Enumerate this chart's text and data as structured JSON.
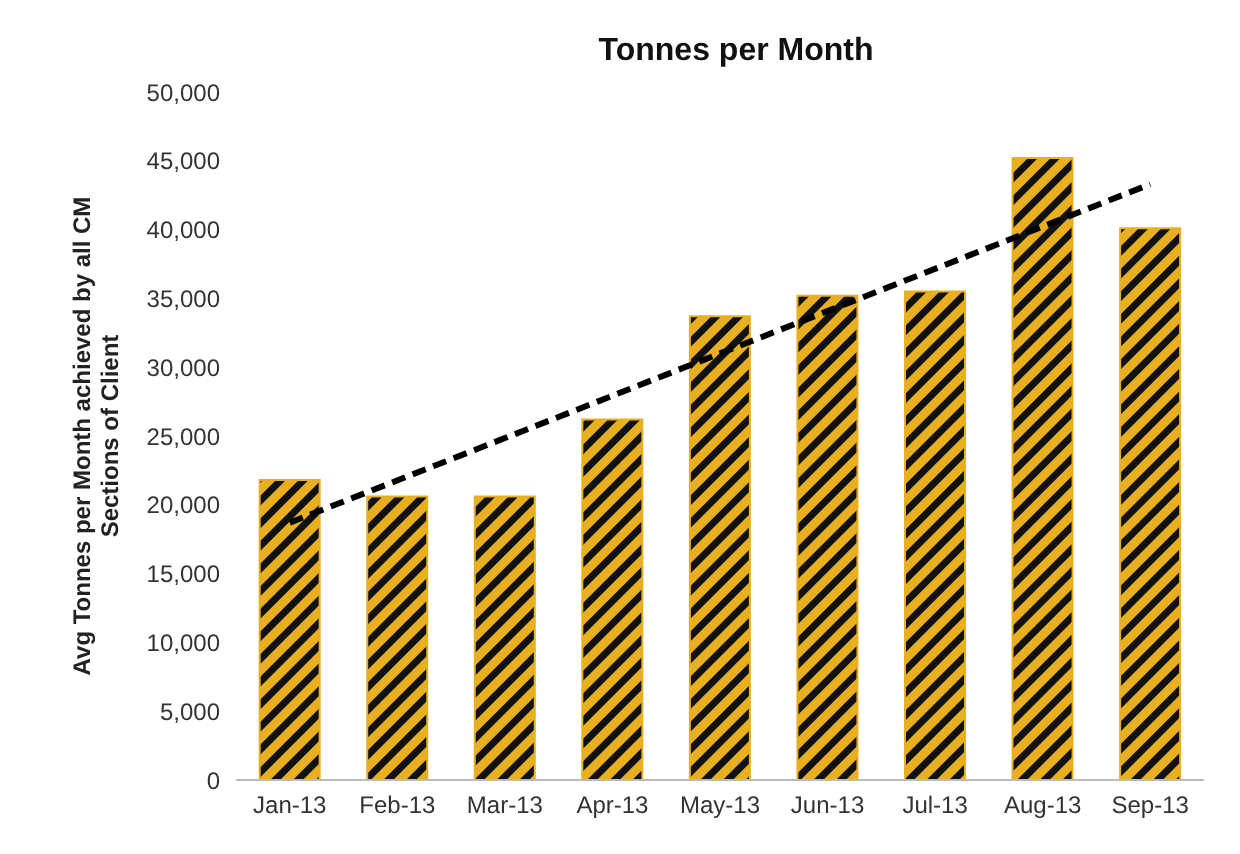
{
  "chart_data": {
    "type": "bar",
    "title": "Tonnes per Month",
    "ylabel": "Avg Tonnes per Month achieved by all CM Sections of Client",
    "categories": [
      "Jan-13",
      "Feb-13",
      "Mar-13",
      "Apr-13",
      "May-13",
      "Jun-13",
      "Jul-13",
      "Aug-13",
      "Sep-13"
    ],
    "series": [
      {
        "color": "#e8b020",
        "values": [
          21800,
          20600,
          20600,
          26200,
          33700,
          35200,
          35500,
          45200,
          40100
        ]
      },
      {
        "type": "line",
        "color": "#000000",
        "line_style": "dashed",
        "x": [
          "Jan-13",
          "Sep-13"
        ],
        "values": [
          18700,
          43300
        ]
      }
    ],
    "ylim": [
      0,
      50000
    ],
    "yticks": [
      0,
      {
        "value": 5000,
        "label": "5,000"
      },
      {
        "value": 10000,
        "label": "10,000"
      },
      {
        "value": 15000,
        "label": "15,000"
      },
      {
        "value": 20000,
        "label": "20,000"
      },
      {
        "value": 25000,
        "label": "25,000"
      },
      {
        "value": 30000,
        "label": "30,000"
      },
      {
        "value": 35000,
        "label": "35,000"
      },
      {
        "value": 40000,
        "label": "40,000"
      },
      {
        "value": 45000,
        "label": "45,000"
      },
      {
        "value": 50000,
        "label": "50,000"
      }
    ]
  }
}
